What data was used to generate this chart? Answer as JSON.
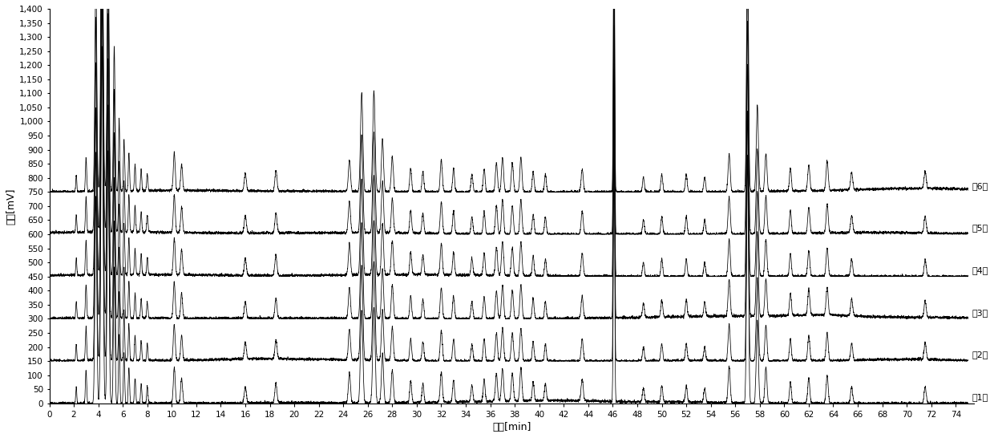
{
  "title": "",
  "xlabel": "时间[min]",
  "ylabel": "信号[mV]",
  "xlim": [
    0,
    75
  ],
  "ylim": [
    0,
    1400
  ],
  "yticks": [
    0,
    50,
    100,
    150,
    200,
    250,
    300,
    350,
    400,
    450,
    500,
    550,
    600,
    650,
    700,
    750,
    800,
    850,
    900,
    950,
    1000,
    1050,
    1100,
    1150,
    1200,
    1250,
    1300,
    1350,
    1400
  ],
  "xticks": [
    0,
    2,
    4,
    6,
    8,
    10,
    12,
    14,
    16,
    18,
    20,
    22,
    24,
    26,
    28,
    30,
    32,
    34,
    36,
    38,
    40,
    42,
    44,
    46,
    48,
    50,
    52,
    54,
    56,
    58,
    60,
    62,
    64,
    66,
    68,
    70,
    72,
    74
  ],
  "n_traces": 6,
  "offsets": [
    0,
    150,
    300,
    450,
    600,
    750
  ],
  "labels": [
    "第1次",
    "第2次",
    "第3次",
    "第4次",
    "第5次",
    "第6次"
  ],
  "line_color": "#000000",
  "background_color": "#ffffff",
  "peak_positions": [
    2.2,
    3.0,
    3.8,
    4.3,
    4.8,
    5.3,
    5.7,
    6.1,
    6.5,
    7.0,
    7.5,
    8.0,
    10.2,
    10.8,
    16.0,
    18.5,
    24.5,
    25.5,
    26.5,
    27.2,
    28.0,
    29.5,
    30.5,
    32.0,
    33.0,
    34.5,
    35.5,
    36.5,
    37.0,
    37.8,
    38.5,
    39.5,
    40.5,
    43.5,
    46.1,
    48.5,
    50.0,
    52.0,
    53.5,
    55.5,
    57.0,
    57.8,
    58.5,
    60.5,
    62.0,
    63.5,
    65.5,
    71.5
  ],
  "peak_heights": [
    60,
    120,
    750,
    1300,
    920,
    500,
    250,
    180,
    130,
    90,
    70,
    60,
    130,
    90,
    60,
    70,
    110,
    340,
    350,
    180,
    120,
    80,
    70,
    110,
    80,
    60,
    80,
    100,
    120,
    100,
    120,
    70,
    60,
    80,
    1050,
    50,
    60,
    60,
    50,
    130,
    900,
    300,
    130,
    80,
    90,
    100,
    60,
    60
  ],
  "peak_widths_fwhm": [
    0.1,
    0.12,
    0.18,
    0.2,
    0.18,
    0.15,
    0.12,
    0.12,
    0.12,
    0.12,
    0.12,
    0.12,
    0.18,
    0.18,
    0.2,
    0.2,
    0.2,
    0.22,
    0.22,
    0.2,
    0.2,
    0.18,
    0.18,
    0.2,
    0.18,
    0.18,
    0.18,
    0.2,
    0.2,
    0.2,
    0.2,
    0.18,
    0.18,
    0.2,
    0.12,
    0.18,
    0.18,
    0.18,
    0.18,
    0.2,
    0.18,
    0.2,
    0.2,
    0.18,
    0.2,
    0.2,
    0.2,
    0.2
  ],
  "noise_amplitude": 4.0,
  "baseline_ripple_amp": 6.0,
  "label_fontsize": 8,
  "axis_fontsize": 9,
  "tick_fontsize": 7.5
}
